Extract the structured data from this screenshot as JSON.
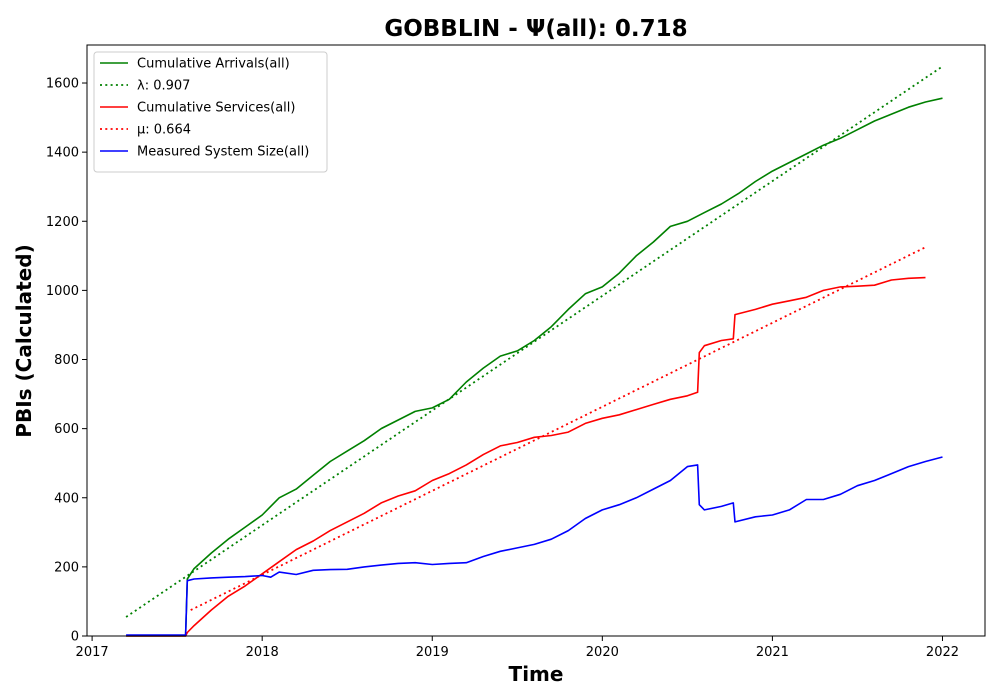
{
  "chart_data": {
    "type": "line",
    "title": "GOBBLIN -  Ψ(all): 0.718",
    "xlabel": "Time",
    "ylabel": "PBIs (Calculated)",
    "xlim": [
      2016.97,
      2022.25
    ],
    "ylim": [
      0,
      1710
    ],
    "x_ticks": [
      2017,
      2018,
      2019,
      2020,
      2021,
      2022
    ],
    "x_tick_labels": [
      "2017",
      "2018",
      "2019",
      "2020",
      "2021",
      "2022"
    ],
    "y_ticks": [
      0,
      200,
      400,
      600,
      800,
      1000,
      1200,
      1400,
      1600
    ],
    "y_tick_labels": [
      "0",
      "200",
      "400",
      "600",
      "800",
      "1000",
      "1200",
      "1400",
      "1600"
    ],
    "grid": false,
    "legend_position": "top-left",
    "series": [
      {
        "name": "Cumulative Arrivals(all)",
        "color": "#008000",
        "style": "solid",
        "x": [
          2017.2,
          2017.55,
          2017.56,
          2017.6,
          2017.7,
          2017.8,
          2017.9,
          2018.0,
          2018.1,
          2018.2,
          2018.3,
          2018.4,
          2018.5,
          2018.6,
          2018.7,
          2018.8,
          2018.9,
          2019.0,
          2019.1,
          2019.2,
          2019.3,
          2019.4,
          2019.5,
          2019.6,
          2019.7,
          2019.8,
          2019.9,
          2020.0,
          2020.1,
          2020.2,
          2020.3,
          2020.4,
          2020.5,
          2020.6,
          2020.7,
          2020.8,
          2020.9,
          2021.0,
          2021.1,
          2021.2,
          2021.3,
          2021.4,
          2021.5,
          2021.6,
          2021.7,
          2021.8,
          2021.9,
          2022.0
        ],
        "y": [
          0,
          0,
          165,
          195,
          240,
          280,
          315,
          350,
          400,
          425,
          465,
          505,
          535,
          565,
          600,
          625,
          650,
          660,
          685,
          735,
          775,
          810,
          825,
          855,
          895,
          945,
          990,
          1010,
          1050,
          1100,
          1140,
          1185,
          1200,
          1225,
          1250,
          1280,
          1315,
          1345,
          1370,
          1395,
          1420,
          1440,
          1465,
          1490,
          1510,
          1530,
          1545,
          1556
        ]
      },
      {
        "name": "λ: 0.907",
        "color": "#008000",
        "style": "dotted",
        "x": [
          2017.2,
          2022.0
        ],
        "y": [
          55,
          1648
        ]
      },
      {
        "name": "Cumulative Services(all)",
        "color": "#ff0000",
        "style": "solid",
        "x": [
          2017.2,
          2017.55,
          2017.56,
          2017.6,
          2017.7,
          2017.8,
          2017.9,
          2018.0,
          2018.1,
          2018.2,
          2018.3,
          2018.4,
          2018.5,
          2018.6,
          2018.7,
          2018.8,
          2018.9,
          2019.0,
          2019.1,
          2019.2,
          2019.3,
          2019.4,
          2019.5,
          2019.6,
          2019.7,
          2019.8,
          2019.9,
          2020.0,
          2020.1,
          2020.2,
          2020.3,
          2020.4,
          2020.5,
          2020.56,
          2020.57,
          2020.6,
          2020.7,
          2020.77,
          2020.78,
          2020.9,
          2021.0,
          2021.1,
          2021.2,
          2021.3,
          2021.4,
          2021.5,
          2021.6,
          2021.7,
          2021.8,
          2021.9
        ],
        "y": [
          0,
          0,
          10,
          30,
          75,
          115,
          145,
          180,
          215,
          250,
          275,
          305,
          330,
          355,
          385,
          405,
          420,
          450,
          470,
          495,
          525,
          550,
          560,
          575,
          580,
          590,
          615,
          630,
          640,
          655,
          670,
          685,
          695,
          705,
          820,
          840,
          855,
          860,
          930,
          945,
          960,
          970,
          980,
          1000,
          1010,
          1012,
          1015,
          1030,
          1035,
          1037
        ]
      },
      {
        "name": "μ: 0.664",
        "color": "#ff0000",
        "style": "dotted",
        "x": [
          2017.58,
          2021.9
        ],
        "y": [
          75,
          1125
        ]
      },
      {
        "name": "Measured System Size(all)",
        "color": "#0000ff",
        "style": "solid",
        "x": [
          2017.2,
          2017.55,
          2017.56,
          2017.6,
          2017.7,
          2017.8,
          2017.9,
          2018.0,
          2018.05,
          2018.1,
          2018.2,
          2018.3,
          2018.4,
          2018.5,
          2018.6,
          2018.7,
          2018.8,
          2018.9,
          2019.0,
          2019.1,
          2019.2,
          2019.3,
          2019.4,
          2019.5,
          2019.6,
          2019.7,
          2019.8,
          2019.9,
          2020.0,
          2020.1,
          2020.2,
          2020.3,
          2020.4,
          2020.5,
          2020.56,
          2020.57,
          2020.6,
          2020.7,
          2020.77,
          2020.78,
          2020.9,
          2021.0,
          2021.1,
          2021.2,
          2021.3,
          2021.4,
          2021.5,
          2021.6,
          2021.7,
          2021.8,
          2021.9,
          2022.0
        ],
        "y": [
          3,
          3,
          160,
          165,
          168,
          170,
          172,
          175,
          170,
          185,
          178,
          190,
          192,
          193,
          200,
          205,
          210,
          212,
          207,
          210,
          212,
          230,
          245,
          255,
          265,
          280,
          305,
          340,
          365,
          380,
          400,
          425,
          450,
          490,
          495,
          380,
          365,
          375,
          385,
          330,
          345,
          350,
          365,
          395,
          395,
          410,
          435,
          450,
          470,
          490,
          505,
          518
        ]
      }
    ]
  }
}
